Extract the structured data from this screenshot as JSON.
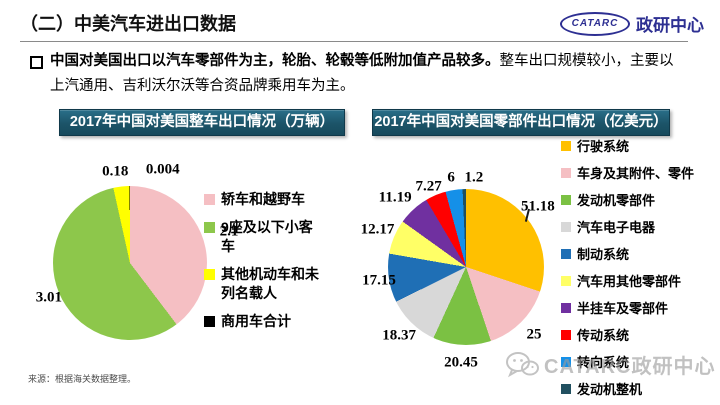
{
  "header": {
    "title": "（二）中美汽车进出口数据"
  },
  "logo": {
    "brand": "CATARC",
    "org": "政研中心",
    "color": "#2D2F92"
  },
  "bullet": {
    "bold_text": "中国对美国出口以汽车零部件为主，轮胎、轮毂等低附加值产品较多。",
    "normal_text": "整车出口规模较小，主要以上汽通用、吉利沃尔沃等合资品牌乘用车为主。"
  },
  "source": "来源：根据海关数据整理。",
  "watermark": "CATARC政研中心",
  "chart_data": [
    {
      "type": "pie",
      "title": "2017年中国对美国整车出口情况（万辆）",
      "unit": "万辆",
      "legend_position": "right",
      "start_angle": "12-oclock-clockwise",
      "slices": [
        {
          "label": "轿车和越野车",
          "value": 2.1,
          "display": "2.1",
          "color": "#F5BFC3"
        },
        {
          "label": "9座及以下小客车",
          "value": 3.01,
          "display": "3.01",
          "color": "#8DC74B"
        },
        {
          "label": "其他机动车和未列名载人",
          "value": 0.18,
          "display": "0.18",
          "color": "#FFFF00"
        },
        {
          "label": "商用车合计",
          "value": 0.004,
          "display": "0.004",
          "color": "#000000"
        }
      ]
    },
    {
      "type": "pie",
      "title": "2017年中国对美国零部件出口情况（亿美元）",
      "unit": "亿美元",
      "legend_position": "right",
      "start_angle": "12-oclock-clockwise",
      "slices": [
        {
          "label": "行驶系统",
          "value": 51.18,
          "display": "51.18",
          "color": "#FFC000"
        },
        {
          "label": "车身及其附件、零件",
          "value": 25,
          "display": "25",
          "color": "#F5BFC3"
        },
        {
          "label": "发动机零部件",
          "value": 20.45,
          "display": "20.45",
          "color": "#7BC143"
        },
        {
          "label": "汽车电子电器",
          "value": 18.37,
          "display": "18.37",
          "color": "#D8D8D8"
        },
        {
          "label": "制动系统",
          "value": 17.15,
          "display": "17.15",
          "color": "#1F6FB5"
        },
        {
          "label": "汽车用其他零部件",
          "value": 12.17,
          "display": "12.17",
          "color": "#FFFF66"
        },
        {
          "label": "半挂车及零部件",
          "value": 11.19,
          "display": "11.19",
          "color": "#7030A0"
        },
        {
          "label": "传动系统",
          "value": 7.27,
          "display": "7.27",
          "color": "#FF0000"
        },
        {
          "label": "转向系统",
          "value": 6,
          "display": "6",
          "color": "#1590E8"
        },
        {
          "label": "发动机整机",
          "value": 1.2,
          "display": "1.2",
          "color": "#215060"
        }
      ]
    }
  ]
}
